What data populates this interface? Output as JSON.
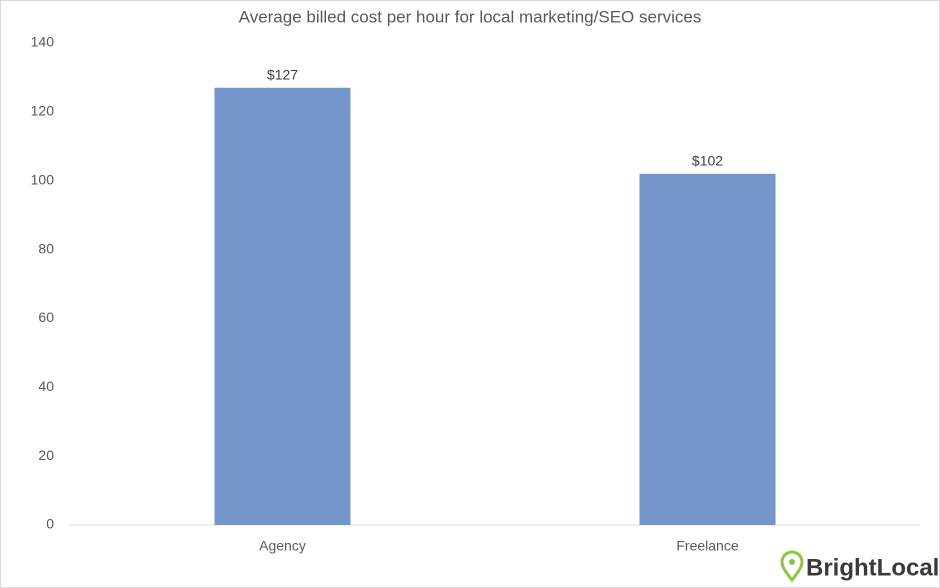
{
  "chart_data": {
    "type": "bar",
    "title": "Average billed cost per hour for local marketing/SEO services",
    "categories": [
      "Agency",
      "Freelance"
    ],
    "values": [
      127,
      102
    ],
    "value_labels": [
      "$127",
      "$102"
    ],
    "color": "#7496cb",
    "ylim": [
      0,
      140
    ],
    "yticks": [
      0,
      20,
      40,
      60,
      80,
      100,
      120,
      140
    ],
    "grid": false,
    "watermark": "BrightLocal"
  }
}
